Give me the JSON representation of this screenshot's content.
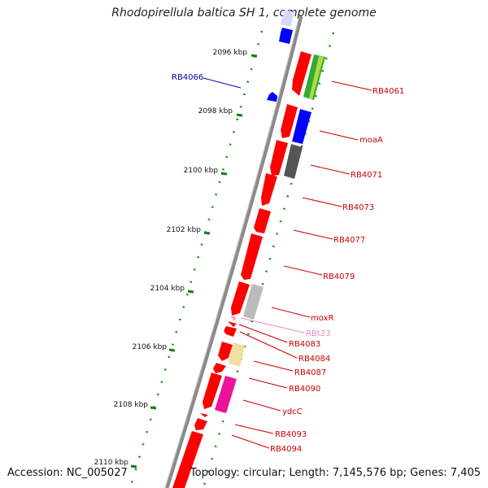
{
  "title": "Rhodopirellula baltica SH 1, complete genome",
  "footer": {
    "accession": "Accession: NC_005027",
    "topology": "Topology: circular; Length: 7,145,576 bp; Genes: 7,405"
  },
  "scale_labels": [
    "2096 kbp",
    "2098 kbp",
    "2100 kbp",
    "2102 kbp",
    "2104 kbp",
    "2106 kbp",
    "2108 kbp",
    "2110 kbp"
  ],
  "gene_labels": [
    {
      "text": "RB4066",
      "color": "#0000aa"
    },
    {
      "text": "RB4061",
      "color": "#cc0000"
    },
    {
      "text": "moaA",
      "color": "#cc0000"
    },
    {
      "text": "RB4071",
      "color": "#cc0000"
    },
    {
      "text": "RB4073",
      "color": "#cc0000"
    },
    {
      "text": "RB4077",
      "color": "#cc0000"
    },
    {
      "text": "RB4079",
      "color": "#cc0000"
    },
    {
      "text": "moxR",
      "color": "#cc0000"
    },
    {
      "text": "RBt23",
      "color": "#e38ec0"
    },
    {
      "text": "RB4083",
      "color": "#cc0000"
    },
    {
      "text": "RB4084",
      "color": "#cc0000"
    },
    {
      "text": "RB4087",
      "color": "#cc0000"
    },
    {
      "text": "RB4090",
      "color": "#cc0000"
    },
    {
      "text": "ydcC",
      "color": "#cc0000"
    },
    {
      "text": "RB4093",
      "color": "#cc0000"
    },
    {
      "text": "RB4094",
      "color": "#cc0000"
    }
  ],
  "colors": {
    "backbone": "#8a8a8a",
    "forward_cds": "#ff0000",
    "reverse_cds": "#0000ff",
    "scale_ticks": "#1a7a1a",
    "rna": "#f0a8d8"
  }
}
